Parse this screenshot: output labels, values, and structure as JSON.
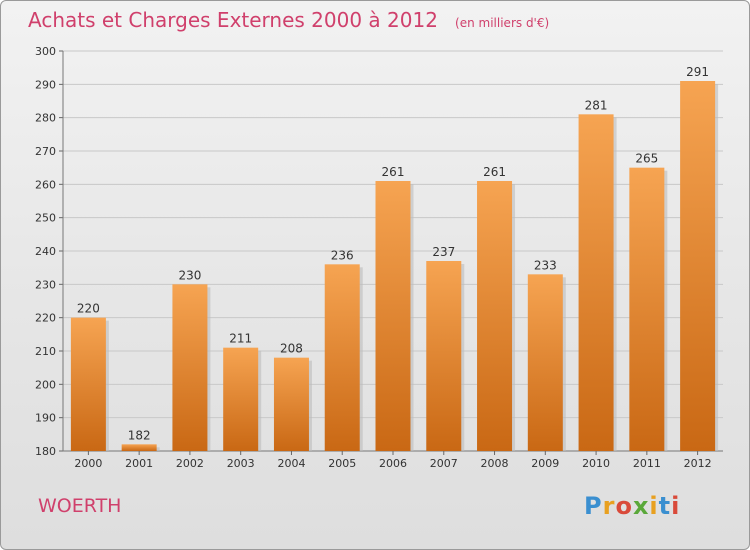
{
  "header": {
    "title": "Achats et Charges Externes 2000 à 2012",
    "unit": "(en milliers d'€)"
  },
  "footer": {
    "commune": "WOERTH",
    "brand": "Proxiti"
  },
  "colors": {
    "bar_light": "#f5a04e",
    "bar_dark": "#c96814",
    "title": "#d0406c",
    "grid": "#c8c8c8"
  },
  "chart_data": {
    "type": "bar",
    "title": "Achats et Charges Externes 2000 à 2012",
    "subtitle": "(en milliers d'€)",
    "xlabel": "",
    "ylabel": "",
    "categories": [
      "2000",
      "2001",
      "2002",
      "2003",
      "2004",
      "2005",
      "2006",
      "2007",
      "2008",
      "2009",
      "2010",
      "2011",
      "2012"
    ],
    "values": [
      220,
      182,
      230,
      211,
      208,
      236,
      261,
      237,
      261,
      233,
      281,
      265,
      291
    ],
    "ylim": [
      180,
      300
    ],
    "yticks": [
      180,
      190,
      200,
      210,
      220,
      230,
      240,
      250,
      260,
      270,
      280,
      290,
      300
    ],
    "grid": true,
    "data_labels": true
  }
}
